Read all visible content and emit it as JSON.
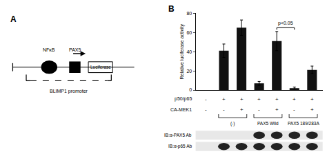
{
  "chart_data": {
    "type": "bar",
    "panel_label": "B",
    "categories": [
      null,
      null,
      null,
      null,
      null,
      null,
      null
    ],
    "values": [
      null,
      41,
      65,
      7,
      51,
      2,
      21
    ],
    "errors": [
      null,
      7,
      8,
      2,
      10,
      1,
      4
    ],
    "color": "#111111",
    "ylabel": "Relative luciferase activity",
    "ylim": [
      0,
      80
    ],
    "yticks": [
      0,
      20,
      40,
      60,
      80
    ],
    "grid": false,
    "tick_labels": "y",
    "rows": [
      {
        "label": "p50/p65",
        "values": [
          "-",
          "+",
          "+",
          "+",
          "+",
          "+",
          "+"
        ]
      },
      {
        "label": "CA-MEK1",
        "values": [
          "-",
          "-",
          "+",
          "-",
          "+",
          "-",
          "+"
        ]
      }
    ],
    "groups": [
      "(-)",
      "PAX5 Wild",
      "PAX5 189/283A"
    ],
    "significance": {
      "text": "p<0.05",
      "between": [
        4,
        5
      ]
    },
    "blots": [
      {
        "label": "IB:α-PAX5 Ab",
        "bands": [
          false,
          false,
          false,
          true,
          true,
          true,
          true
        ]
      },
      {
        "label": "IB:α-p65 Ab",
        "bands": [
          false,
          true,
          true,
          true,
          true,
          true,
          true
        ]
      }
    ],
    "blot_color": "#222222",
    "blot_background": "#e8e8e8",
    "background": "#ffffff"
  },
  "diagram": {
    "label": "A",
    "texts": [
      "NFκB",
      "PAX5",
      "Luciferase",
      "BLIMP1 promoter"
    ]
  }
}
